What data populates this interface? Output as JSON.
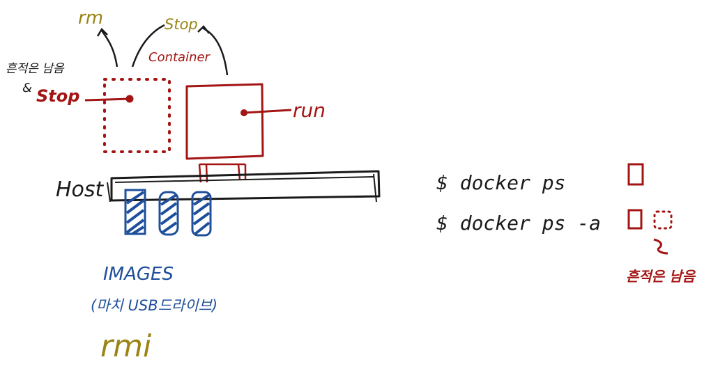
{
  "labels": {
    "rm": "rm",
    "stop_top": "Stop",
    "container": "Container",
    "stop_left": "Stop",
    "note_left_line1": "흔적은 남음",
    "note_left_line2": "&",
    "run": "run",
    "host": "Host",
    "images": "IMAGES",
    "images_note": "(마치 USB드라이브)",
    "rmi": "rmi",
    "cmd_ps": "$ docker ps",
    "cmd_ps_a": "$ docker ps -a",
    "trace_note": "흔적은 남음"
  },
  "colors": {
    "ink_black": "#1a1a1a",
    "ink_red": "#a31515",
    "ink_blue": "#1f4f9a",
    "ink_olive": "#9a8416"
  }
}
